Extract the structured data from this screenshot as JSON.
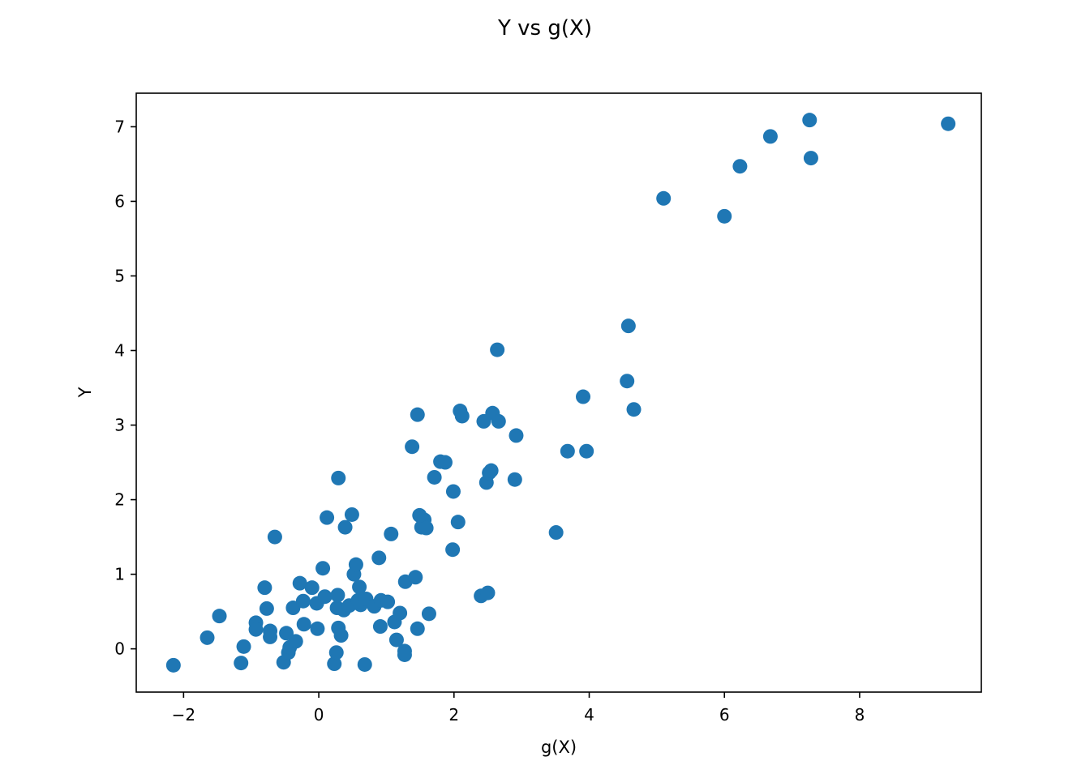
{
  "chart_data": {
    "type": "scatter",
    "title": "Y vs g(X)",
    "xlabel": "g(X)",
    "ylabel": "Y",
    "xlim": [
      -2.7,
      9.8
    ],
    "ylim": [
      -0.58,
      7.45
    ],
    "xticks": [
      -2,
      0,
      2,
      4,
      6,
      8
    ],
    "xtick_labels": [
      "−2",
      "0",
      "2",
      "4",
      "6",
      "8"
    ],
    "yticks": [
      0,
      1,
      2,
      3,
      4,
      5,
      6,
      7
    ],
    "ytick_labels": [
      "0",
      "1",
      "2",
      "3",
      "4",
      "5",
      "6",
      "7"
    ],
    "grid": false,
    "marker_color": "#1f77b4",
    "points": [
      [
        -2.15,
        -0.22
      ],
      [
        -1.65,
        0.15
      ],
      [
        -1.47,
        0.44
      ],
      [
        -1.15,
        -0.19
      ],
      [
        -1.11,
        0.03
      ],
      [
        -0.93,
        0.35
      ],
      [
        -0.93,
        0.26
      ],
      [
        -0.8,
        0.82
      ],
      [
        -0.77,
        0.54
      ],
      [
        -0.72,
        0.24
      ],
      [
        -0.72,
        0.16
      ],
      [
        -0.65,
        1.5
      ],
      [
        -0.52,
        -0.18
      ],
      [
        -0.48,
        0.21
      ],
      [
        -0.45,
        -0.05
      ],
      [
        -0.43,
        0.02
      ],
      [
        -0.38,
        0.55
      ],
      [
        -0.34,
        0.1
      ],
      [
        -0.28,
        0.88
      ],
      [
        -0.23,
        0.64
      ],
      [
        -0.22,
        0.33
      ],
      [
        -0.1,
        0.82
      ],
      [
        -0.03,
        0.61
      ],
      [
        -0.02,
        0.27
      ],
      [
        0.06,
        1.08
      ],
      [
        0.09,
        0.7
      ],
      [
        0.12,
        1.76
      ],
      [
        0.23,
        -0.2
      ],
      [
        0.26,
        -0.05
      ],
      [
        0.27,
        0.55
      ],
      [
        0.28,
        0.72
      ],
      [
        0.29,
        0.28
      ],
      [
        0.29,
        2.29
      ],
      [
        0.33,
        0.18
      ],
      [
        0.37,
        0.52
      ],
      [
        0.39,
        1.63
      ],
      [
        0.45,
        0.58
      ],
      [
        0.49,
        1.8
      ],
      [
        0.52,
        1.0
      ],
      [
        0.55,
        1.13
      ],
      [
        0.58,
        0.65
      ],
      [
        0.6,
        0.83
      ],
      [
        0.62,
        0.59
      ],
      [
        0.68,
        -0.21
      ],
      [
        0.7,
        0.67
      ],
      [
        0.82,
        0.57
      ],
      [
        0.89,
        1.22
      ],
      [
        0.91,
        0.3
      ],
      [
        0.92,
        0.65
      ],
      [
        1.02,
        0.63
      ],
      [
        1.07,
        1.54
      ],
      [
        1.12,
        0.36
      ],
      [
        1.15,
        0.12
      ],
      [
        1.2,
        0.48
      ],
      [
        1.27,
        -0.03
      ],
      [
        1.27,
        -0.08
      ],
      [
        1.28,
        0.9
      ],
      [
        1.38,
        2.71
      ],
      [
        1.43,
        0.96
      ],
      [
        1.46,
        3.14
      ],
      [
        1.46,
        0.27
      ],
      [
        1.49,
        1.79
      ],
      [
        1.52,
        1.63
      ],
      [
        1.56,
        1.73
      ],
      [
        1.59,
        1.62
      ],
      [
        1.63,
        0.47
      ],
      [
        1.71,
        2.3
      ],
      [
        1.8,
        2.51
      ],
      [
        1.87,
        2.5
      ],
      [
        1.98,
        1.33
      ],
      [
        1.99,
        2.11
      ],
      [
        2.06,
        1.7
      ],
      [
        2.09,
        3.19
      ],
      [
        2.12,
        3.12
      ],
      [
        2.4,
        0.71
      ],
      [
        2.44,
        3.05
      ],
      [
        2.48,
        2.23
      ],
      [
        2.5,
        0.75
      ],
      [
        2.52,
        2.36
      ],
      [
        2.55,
        2.39
      ],
      [
        2.57,
        3.16
      ],
      [
        2.64,
        4.01
      ],
      [
        2.66,
        3.05
      ],
      [
        2.9,
        2.27
      ],
      [
        2.92,
        2.86
      ],
      [
        3.51,
        1.56
      ],
      [
        3.68,
        2.65
      ],
      [
        3.91,
        3.38
      ],
      [
        3.96,
        2.65
      ],
      [
        4.56,
        3.59
      ],
      [
        4.58,
        4.33
      ],
      [
        4.66,
        3.21
      ],
      [
        5.1,
        6.04
      ],
      [
        6.0,
        5.8
      ],
      [
        6.23,
        6.47
      ],
      [
        6.68,
        6.87
      ],
      [
        7.26,
        7.09
      ],
      [
        7.28,
        6.58
      ],
      [
        9.31,
        7.04
      ]
    ]
  }
}
